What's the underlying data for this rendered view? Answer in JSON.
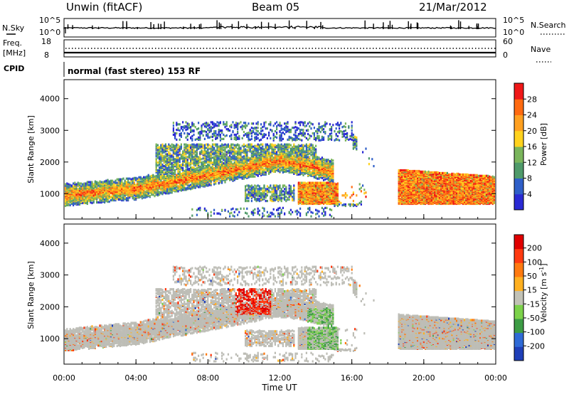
{
  "header": {
    "station": "Unwin (fitACF)",
    "beam": "Beam 05",
    "date": "21/Mar/2012"
  },
  "summary": {
    "nsky_label": "N.Sky",
    "nsky_ticks": [
      "10^5",
      "10^0"
    ],
    "nsearch_label": "N.Search",
    "nsearch_ticks": [
      "10^5",
      "10^0"
    ],
    "freq_label": "Freq.",
    "freq_unit": "[MHz]",
    "freq_ticks": [
      "18",
      "8"
    ],
    "nave_label": "Nave",
    "nave_ticks": [
      "60",
      "0"
    ],
    "cpid_label": "CPID",
    "cpid_value": "normal (fast stereo) 153 RF"
  },
  "colors": {
    "power_scale": [
      "#2a2ad4",
      "#2f5fc8",
      "#4f9a6a",
      "#7ab55c",
      "#ffd21e",
      "#ffa020",
      "#ff6a10",
      "#f01818"
    ],
    "velocity_scale": [
      "#1f3fb8",
      "#2f6ad6",
      "#3d9c45",
      "#7cd24a",
      "#c2c2b6",
      "#ffb020",
      "#ff7a10",
      "#ff3a10",
      "#e00000"
    ],
    "ground_scatter": "#bdbdb6"
  },
  "chart_data": [
    {
      "type": "heatmap",
      "panel": "power",
      "ylabel": "Slant Range [km]",
      "yticks": [
        "1000",
        "2000",
        "3000",
        "4000"
      ],
      "ylim": [
        200,
        4600
      ],
      "xlim": [
        "00:00",
        "24:00"
      ],
      "colorbar_label": "Power [dB]",
      "colorbar_ticks": [
        "4",
        "8",
        "12",
        "16",
        "20",
        "24",
        "28"
      ],
      "colorbar_range": [
        0,
        32
      ]
    },
    {
      "type": "heatmap",
      "panel": "velocity",
      "ylabel": "Slant Range [km]",
      "yticks": [
        "1000",
        "2000",
        "3000",
        "4000"
      ],
      "ylim": [
        200,
        4600
      ],
      "xlim": [
        "00:00",
        "24:00"
      ],
      "colorbar_label": "Velocity [m s",
      "colorbar_label_sup": "-1",
      "colorbar_label_end": "]",
      "colorbar_ticks": [
        "200",
        "100",
        "50",
        "15",
        "-15",
        "-50",
        "-100",
        "-200"
      ],
      "xlabel": "Time UT",
      "xticks": [
        "00:00",
        "04:00",
        "08:00",
        "12:00",
        "16:00",
        "20:00",
        "00:00"
      ]
    }
  ]
}
